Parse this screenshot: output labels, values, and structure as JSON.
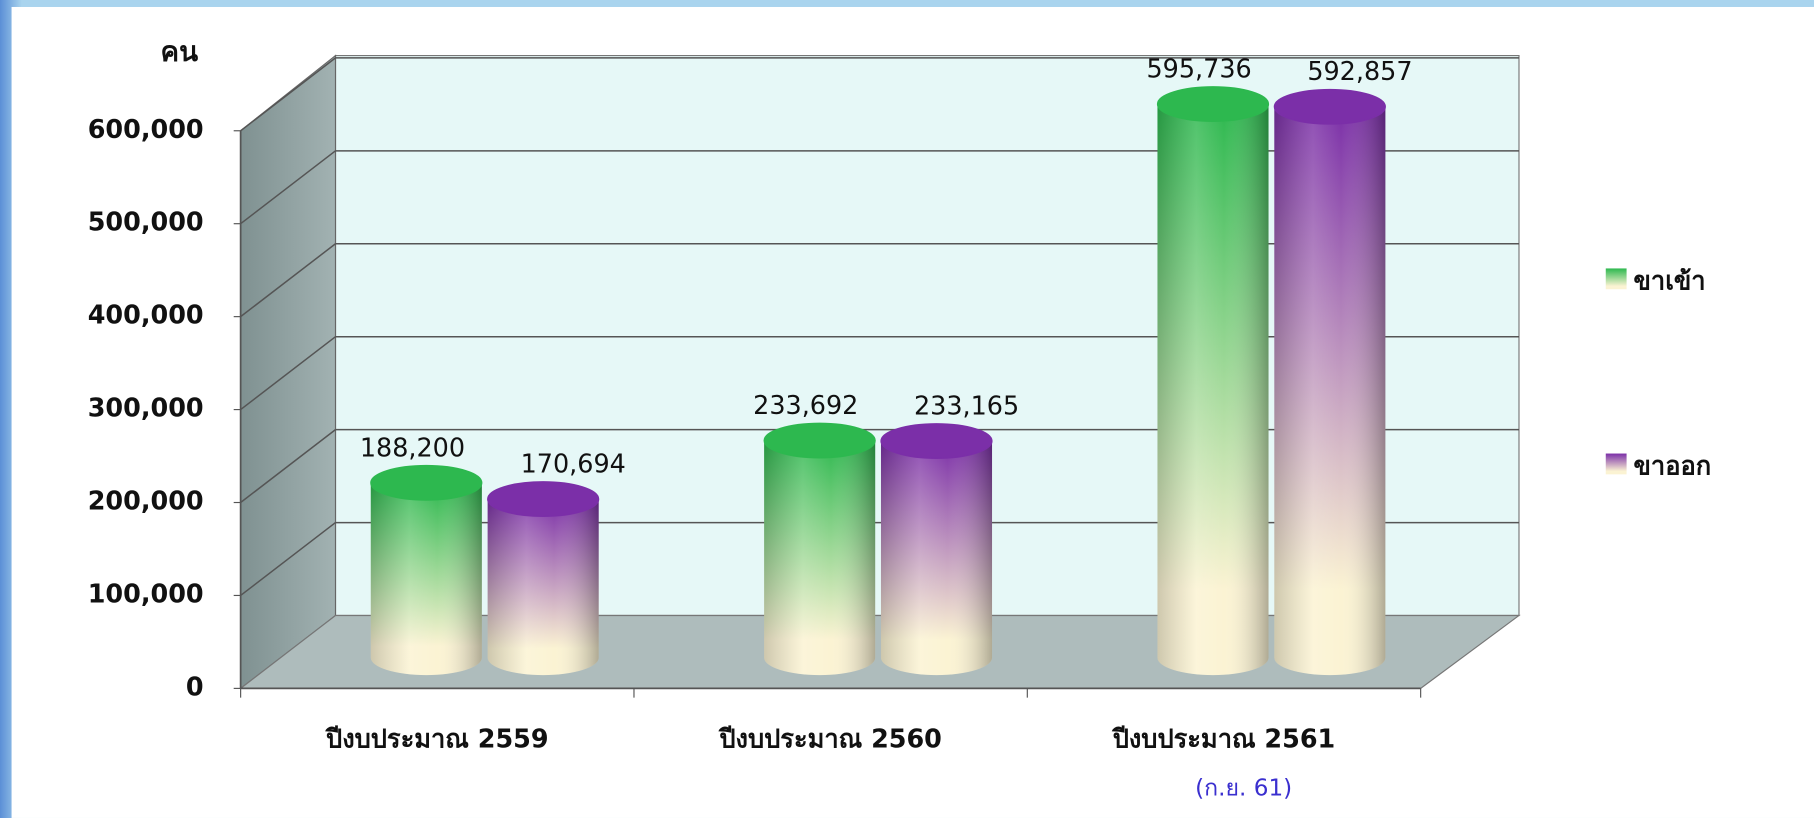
{
  "chart_data": {
    "type": "bar3d",
    "ylabel": "คน",
    "categories": [
      "ปีงบประมาณ 2559",
      "ปีงบประมาณ 2560",
      "ปีงบประมาณ 2561"
    ],
    "annotation": "(ก.ย. 61)",
    "series": [
      {
        "name": "ขาเข้า",
        "color": "#2db84f",
        "values": [
          188200,
          233692,
          595736
        ],
        "value_labels": [
          "188,200",
          "233,692",
          "595,736"
        ]
      },
      {
        "name": "ขาออก",
        "color": "#7b2fa8",
        "values": [
          170694,
          233165,
          592857
        ],
        "value_labels": [
          "170,694",
          "233,165",
          "592,857"
        ]
      }
    ],
    "ylim": [
      0,
      600000
    ],
    "yticks": [
      0,
      {
        "value": 100000,
        "label": "100,000"
      },
      {
        "value": 200000,
        "label": "200,000"
      },
      {
        "value": 300000,
        "label": "300,000"
      },
      {
        "value": 400000,
        "label": "400,000"
      },
      {
        "value": 500000,
        "label": "500,000"
      },
      {
        "value": 600000,
        "label": "600,000"
      }
    ],
    "grid": true,
    "legend": "right"
  }
}
